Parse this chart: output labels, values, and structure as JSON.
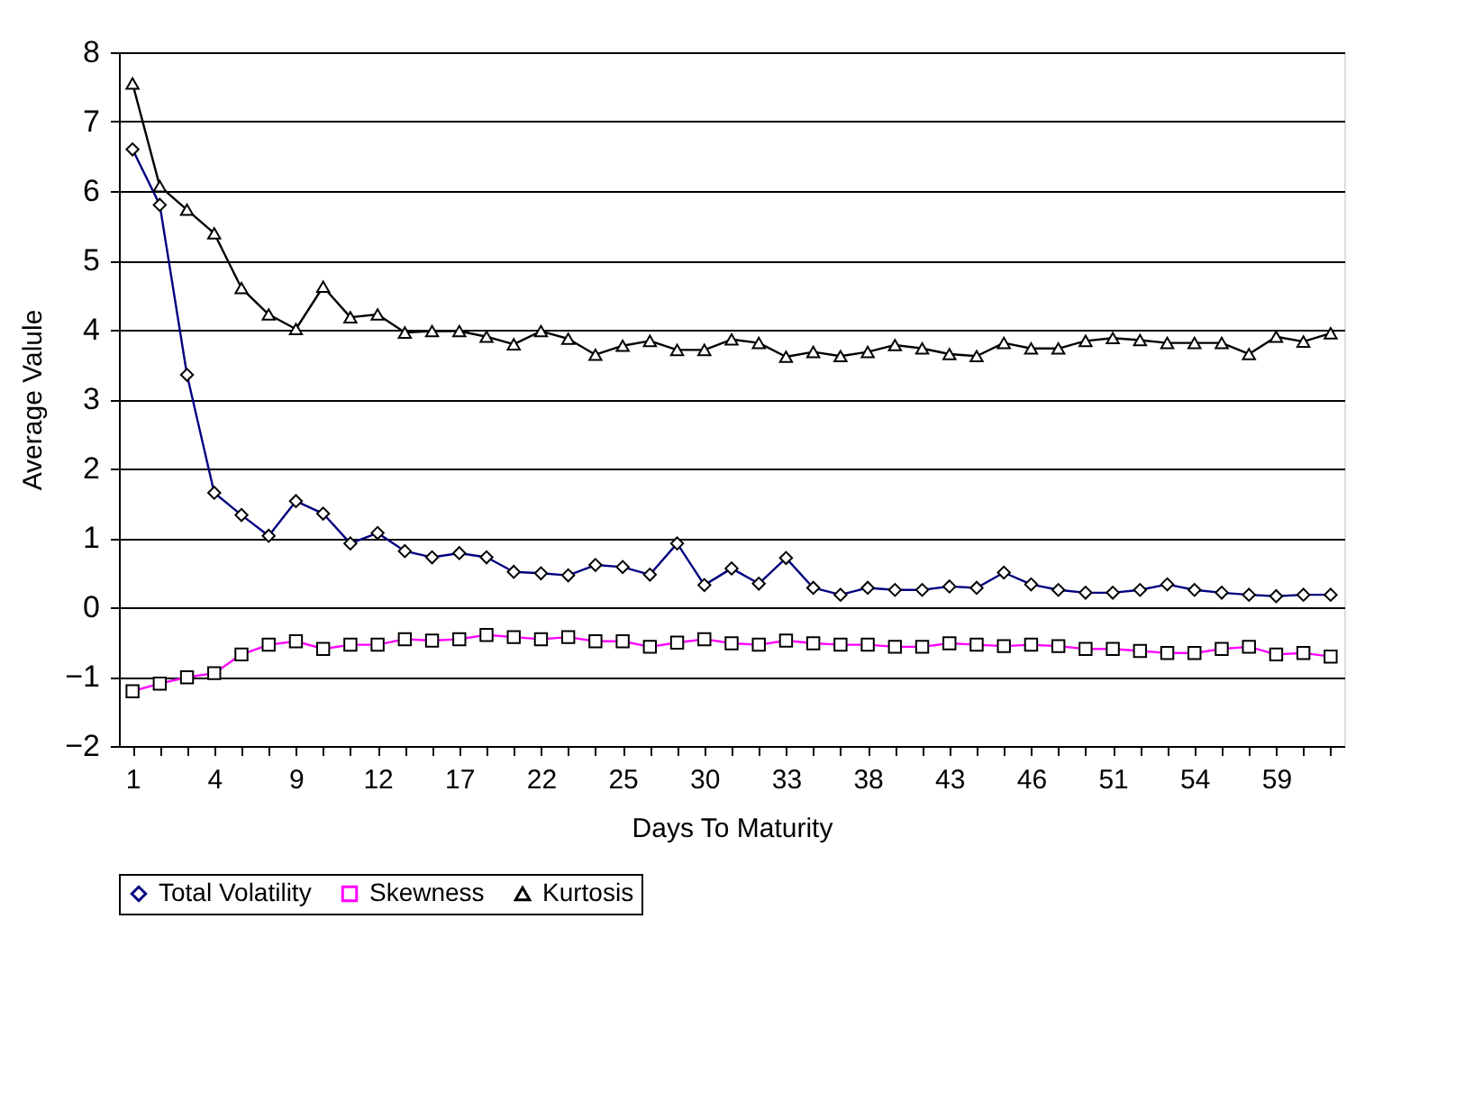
{
  "chart_data": {
    "type": "line",
    "xlabel": "Days To Maturity",
    "ylabel": "Average Valule",
    "categories": [
      "1",
      null,
      null,
      "4",
      null,
      null,
      "9",
      null,
      null,
      "12",
      null,
      null,
      "17",
      null,
      null,
      "22",
      null,
      null,
      "25",
      null,
      null,
      "30",
      null,
      null,
      "33",
      null,
      null,
      "38",
      null,
      null,
      "43",
      null,
      null,
      "46",
      null,
      null,
      "51",
      null,
      null,
      "54",
      null,
      null,
      "59",
      null,
      null
    ],
    "series": [
      {
        "name": "Total Volatility",
        "color": "#000080",
        "marker": "diamond",
        "values": [
          6.6,
          5.8,
          3.35,
          1.65,
          1.33,
          1.03,
          1.53,
          1.35,
          0.92,
          1.07,
          0.81,
          0.72,
          0.78,
          0.72,
          0.51,
          0.49,
          0.46,
          0.61,
          0.58,
          0.47,
          0.92,
          0.32,
          0.56,
          0.34,
          0.71,
          0.28,
          0.18,
          0.28,
          0.25,
          0.25,
          0.3,
          0.28,
          0.5,
          0.33,
          0.25,
          0.21,
          0.21,
          0.25,
          0.33,
          0.25,
          0.21,
          0.18,
          0.16,
          0.18,
          0.18
        ]
      },
      {
        "name": "Skewness",
        "color": "#ff00ff",
        "marker": "square",
        "values": [
          -1.21,
          -1.1,
          -1.01,
          -0.95,
          -0.68,
          -0.54,
          -0.49,
          -0.6,
          -0.54,
          -0.54,
          -0.46,
          -0.48,
          -0.46,
          -0.4,
          -0.43,
          -0.46,
          -0.43,
          -0.49,
          -0.49,
          -0.57,
          -0.51,
          -0.46,
          -0.52,
          -0.54,
          -0.48,
          -0.52,
          -0.54,
          -0.54,
          -0.57,
          -0.57,
          -0.52,
          -0.54,
          -0.56,
          -0.54,
          -0.56,
          -0.6,
          -0.6,
          -0.63,
          -0.66,
          -0.66,
          -0.6,
          -0.57,
          -0.68,
          -0.66,
          -0.71
        ]
      },
      {
        "name": "Kurtosis",
        "color": "#000000",
        "marker": "triangle",
        "values": [
          7.55,
          6.07,
          5.73,
          5.39,
          4.6,
          4.22,
          4.01,
          4.62,
          4.18,
          4.22,
          3.96,
          3.98,
          3.98,
          3.9,
          3.79,
          3.98,
          3.87,
          3.64,
          3.77,
          3.84,
          3.71,
          3.71,
          3.86,
          3.81,
          3.61,
          3.68,
          3.62,
          3.68,
          3.78,
          3.73,
          3.65,
          3.62,
          3.81,
          3.73,
          3.73,
          3.84,
          3.88,
          3.85,
          3.81,
          3.81,
          3.81,
          3.65,
          3.9,
          3.83,
          3.95
        ]
      }
    ],
    "ylim": [
      -2,
      8
    ],
    "yticks": [
      -2,
      -1,
      0,
      1,
      2,
      3,
      4,
      5,
      6,
      7,
      8
    ],
    "grid": "y",
    "legend": "bottom",
    "line_style": "solid"
  }
}
